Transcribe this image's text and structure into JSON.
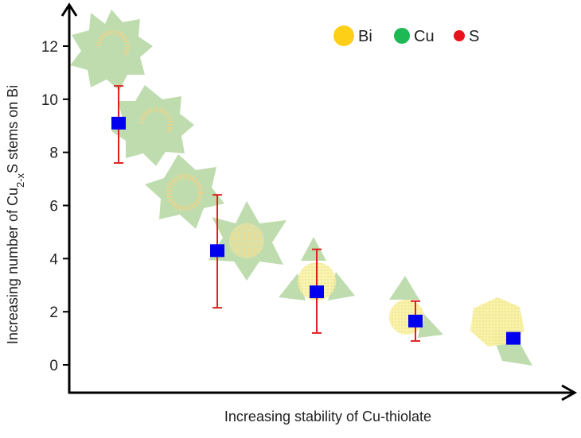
{
  "chart_data": {
    "type": "scatter",
    "title": "",
    "xlabel": "Increasing stability of Cu-thiolate",
    "ylabel": "Increasing number of Cu2-xS stems on Bi",
    "ylabel_parts": {
      "pre": "Increasing number of Cu",
      "sub": "2-x",
      "post": "S stems on Bi"
    },
    "ylim": [
      0,
      12
    ],
    "yticks": [
      0,
      2,
      4,
      6,
      8,
      10,
      12
    ],
    "xticks": [],
    "grid": false,
    "legend_position": "top-right",
    "legend": [
      {
        "label": "Bi",
        "color": "#FDD017",
        "size": "large"
      },
      {
        "label": "Cu",
        "color": "#1DB954",
        "size": "medium"
      },
      {
        "label": "S",
        "color": "#E8121B",
        "size": "small"
      }
    ],
    "series": [
      {
        "name": "Cu2-xS stems",
        "marker": "square",
        "marker_color": "#0000EE",
        "errorbar_color": "#E02020",
        "x": [
          1,
          2,
          3,
          4,
          5
        ],
        "values": [
          9.1,
          4.3,
          2.75,
          1.65,
          1.0
        ],
        "err_upper": [
          10.5,
          6.4,
          4.35,
          2.4,
          null
        ],
        "err_lower": [
          7.6,
          2.15,
          1.2,
          0.9,
          null
        ]
      }
    ],
    "annotations": "Nanostructure illustrations (Bi core in yellow with green Cu2-xS stems) placed along the data trend; stem count decreasing left to right"
  }
}
